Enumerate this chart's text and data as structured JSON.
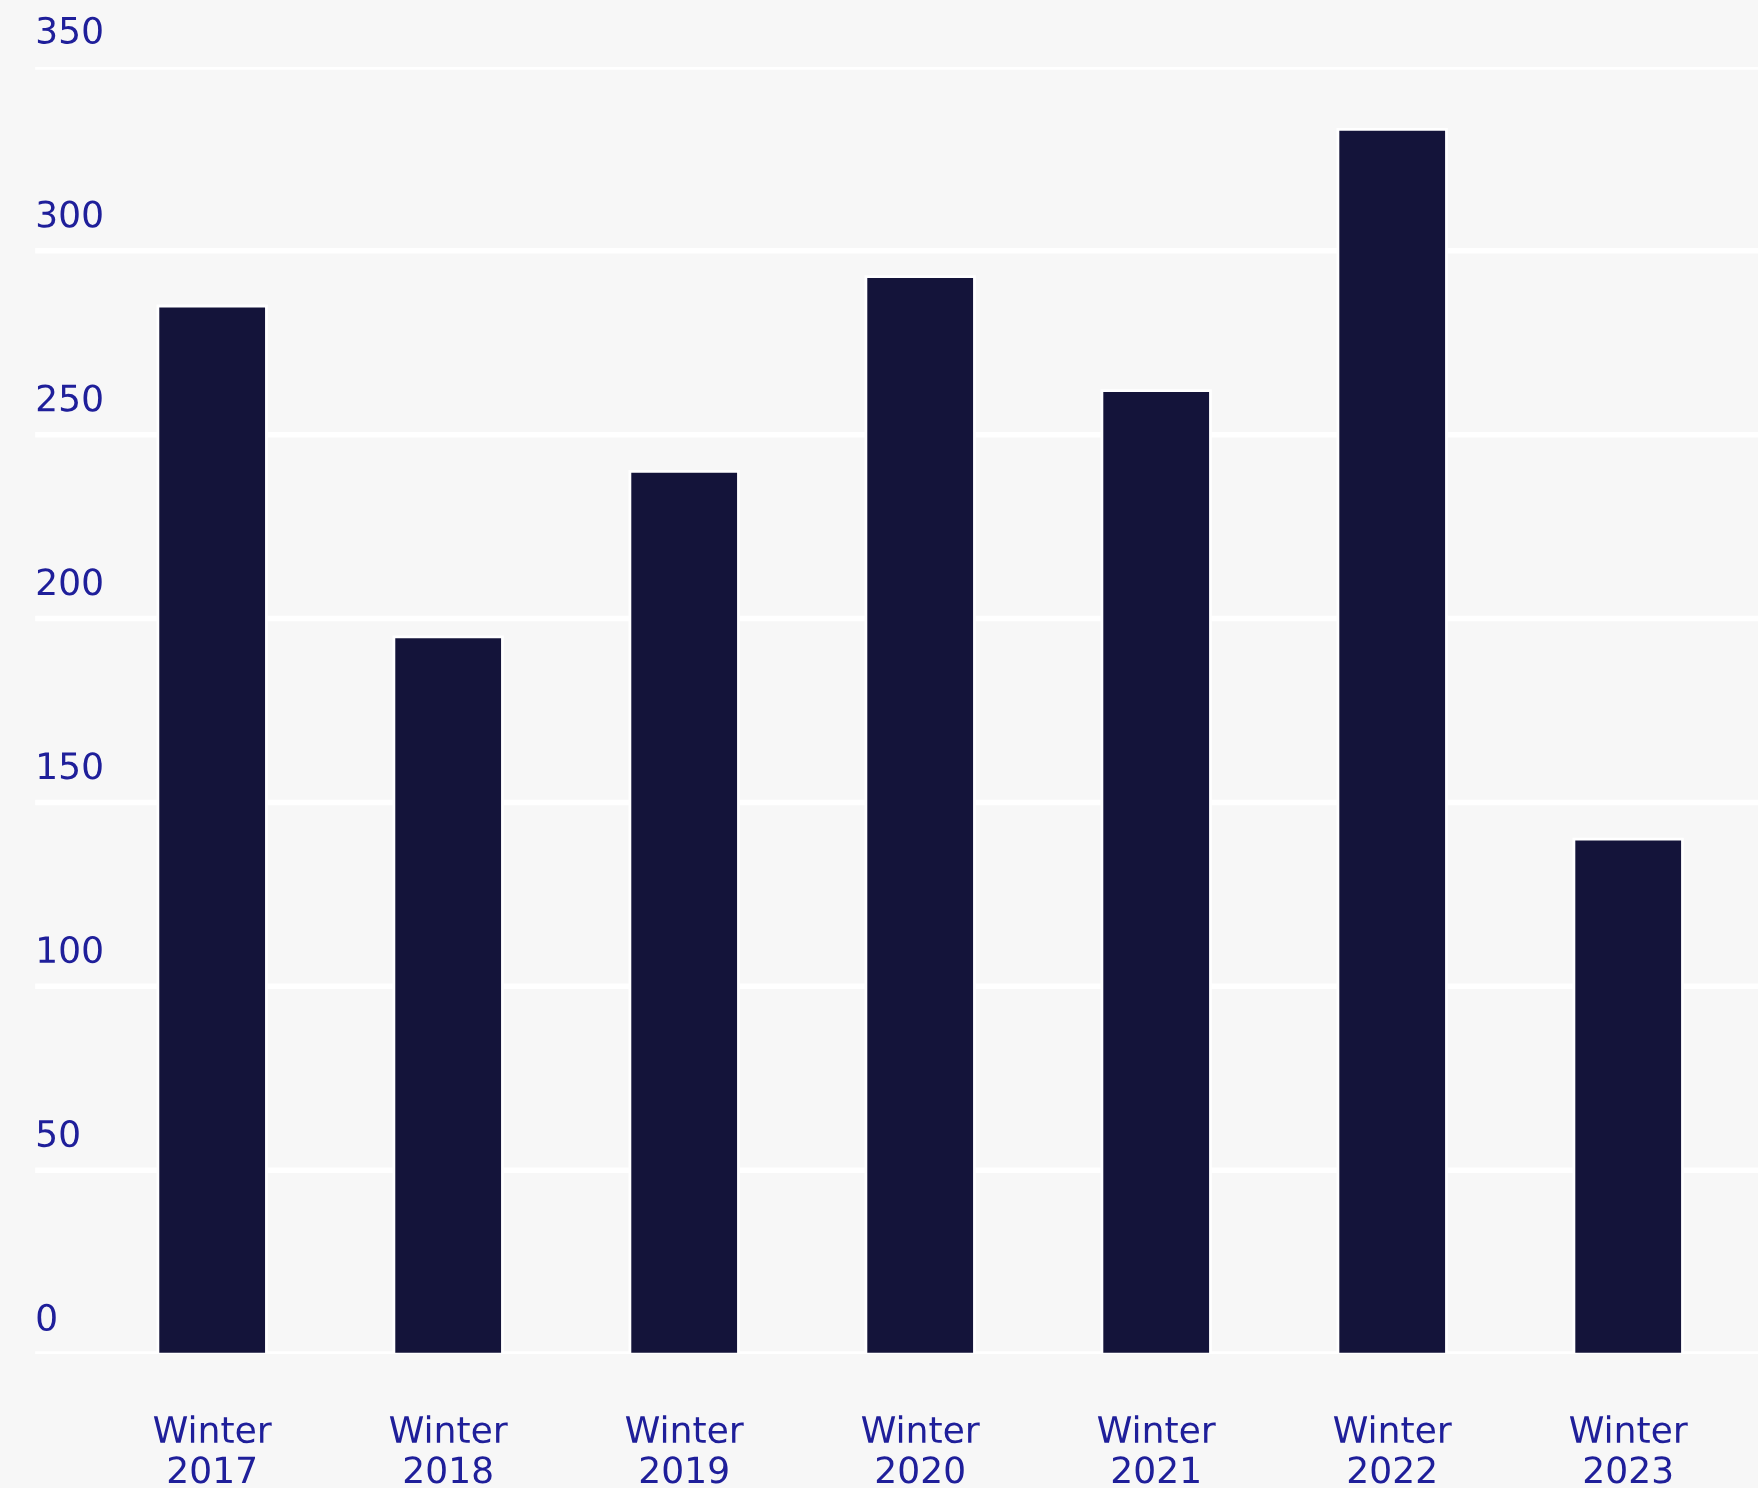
{
  "chart_data": {
    "type": "bar",
    "categories": [
      "Winter 2017",
      "Winter 2018",
      "Winter 2019",
      "Winter 2020",
      "Winter 2021",
      "Winter 2022",
      "Winter 2023"
    ],
    "values": [
      285,
      195,
      240,
      293,
      262,
      333,
      140
    ],
    "color": "#14143a",
    "ylim": [
      0,
      350
    ],
    "yticks": [
      0,
      50,
      100,
      150,
      200,
      250,
      300,
      350
    ],
    "grid": "y"
  }
}
